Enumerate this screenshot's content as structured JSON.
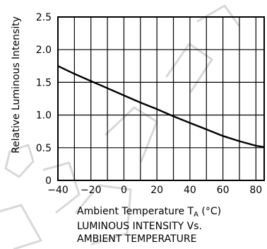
{
  "chart_data": {
    "type": "line",
    "ylabel": "Relative Luminous Intensity",
    "xlabel": {
      "prefix": "Ambient Temperature T",
      "subscript": "A",
      "suffix": " (°C)"
    },
    "caption": [
      "LUMINOUS INTENSITY Vs.",
      "AMBIENT TEMPERATURE"
    ],
    "xlim": [
      -40,
      85
    ],
    "ylim": [
      0,
      2.5
    ],
    "x_ticks": [
      -40,
      -20,
      0,
      20,
      40,
      60,
      80
    ],
    "x_tick_labels": [
      "−40",
      "−20",
      "0",
      "20",
      "40",
      "60",
      "80"
    ],
    "y_ticks": [
      0,
      0.5,
      1.0,
      1.5,
      2.0,
      2.5
    ],
    "y_tick_labels": [
      "0",
      "0.5",
      "1.0",
      "1.5",
      "2.0",
      "2.5"
    ],
    "x_grid": [
      -40,
      -30,
      -20,
      -10,
      0,
      10,
      20,
      30,
      40,
      50,
      60,
      70,
      80
    ],
    "y_grid": [
      0,
      0.5,
      1.0,
      1.5,
      2.0,
      2.5
    ],
    "grid": true,
    "series": [
      {
        "x": [
          -40,
          -30,
          -20,
          -10,
          0,
          10,
          20,
          30,
          40,
          50,
          60,
          70,
          80,
          85
        ],
        "y": [
          1.75,
          1.63,
          1.52,
          1.41,
          1.3,
          1.19,
          1.09,
          0.98,
          0.88,
          0.78,
          0.68,
          0.6,
          0.53,
          0.51
        ]
      }
    ],
    "line_color": "#000000"
  },
  "watermark": {
    "color": "#d8d8d8"
  }
}
